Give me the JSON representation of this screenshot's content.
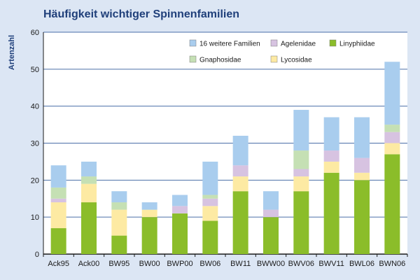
{
  "chart_data": {
    "type": "bar",
    "stacked": true,
    "title": "Häufigkeit wichtiger Spinnenfamilien",
    "ylabel": "Artenzahl",
    "xlabel": "",
    "ylim": [
      0,
      60
    ],
    "yticks": [
      0,
      10,
      20,
      30,
      40,
      50,
      60
    ],
    "grid": true,
    "legend_position": "top-right",
    "categories": [
      "Ack95",
      "Ack00",
      "BW95",
      "BW00",
      "BWP00",
      "BW06",
      "BW11",
      "BWW00",
      "BWV06",
      "BWV11",
      "BWL06",
      "BWN06"
    ],
    "series": [
      {
        "name": "Linyphiidae",
        "color": "#8bbd2a",
        "values": [
          7,
          14,
          5,
          10,
          11,
          9,
          17,
          10,
          17,
          22,
          20,
          27
        ]
      },
      {
        "name": "Lycosidae",
        "color": "#fdeaa3",
        "values": [
          7,
          5,
          7,
          2,
          0,
          4,
          4,
          0,
          4,
          3,
          2,
          3
        ]
      },
      {
        "name": "Agelenidae",
        "color": "#d7c3e1",
        "values": [
          1,
          0,
          0,
          0,
          2,
          2,
          3,
          2,
          2,
          3,
          4,
          3
        ]
      },
      {
        "name": "Gnaphosidae",
        "color": "#c5e0b4",
        "values": [
          3,
          2,
          2,
          0,
          0,
          1,
          0,
          0,
          5,
          0,
          0,
          2
        ]
      },
      {
        "name": "16 weitere Familien",
        "color": "#a9cdee",
        "values": [
          6,
          4,
          3,
          2,
          3,
          9,
          8,
          5,
          11,
          9,
          11,
          17
        ]
      }
    ],
    "legend_order": [
      "16 weitere Familien",
      "Agelenidae",
      "Linyphiidae",
      "Gnaphosidae",
      "Lycosidae"
    ]
  }
}
